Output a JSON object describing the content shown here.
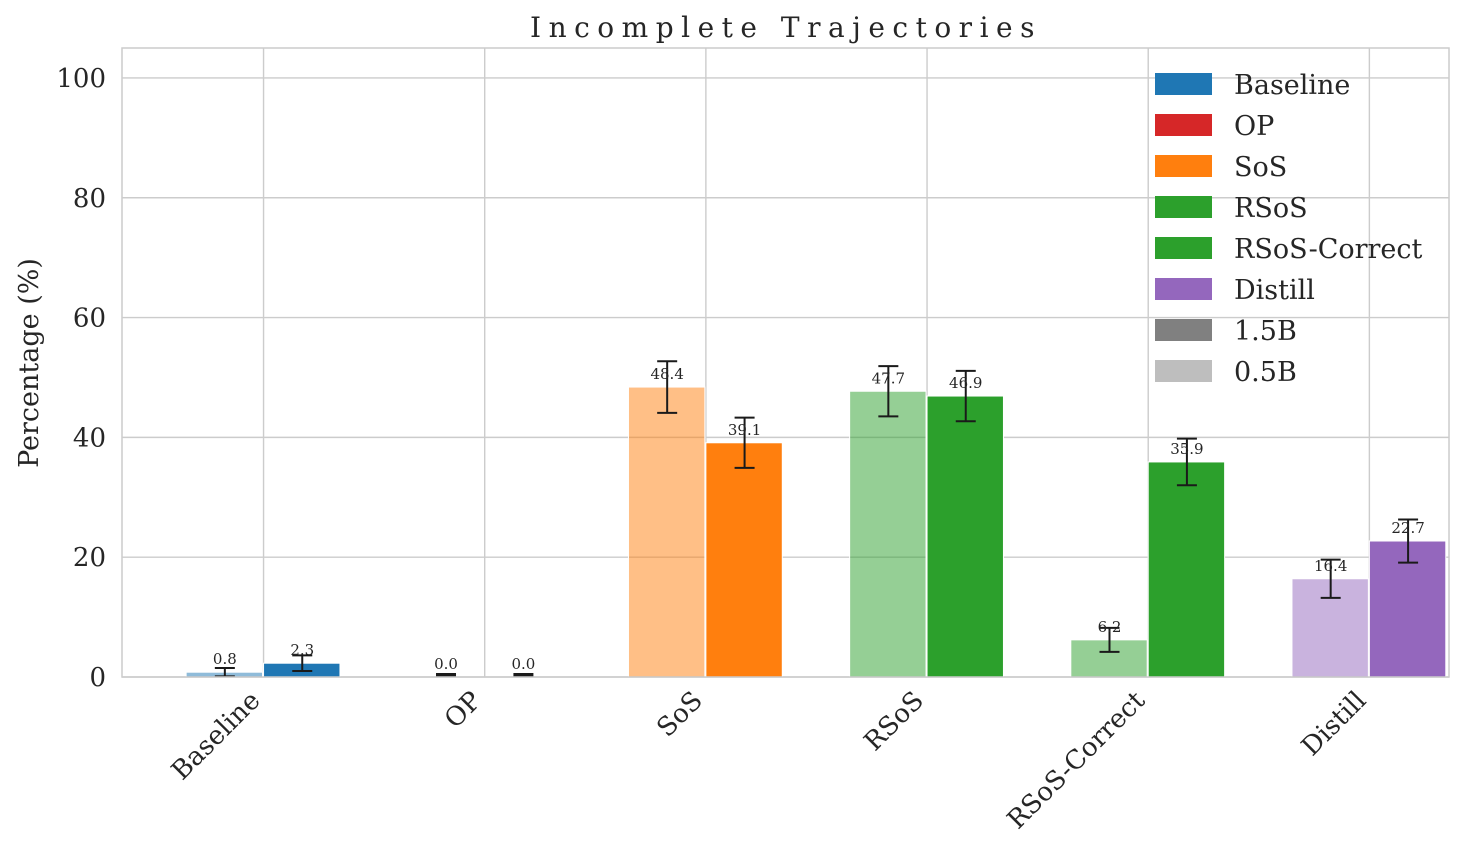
{
  "chart_data": {
    "type": "bar",
    "title": "Incomplete Trajectories",
    "xlabel": "",
    "ylabel": "Percentage (%)",
    "ylim": [
      0,
      105
    ],
    "yticks": [
      0,
      20,
      40,
      60,
      80,
      100
    ],
    "grid": true,
    "legend_position": "top-right",
    "categories": [
      "Baseline",
      "OP",
      "SoS",
      "RSoS",
      "RSoS-Correct",
      "Distill"
    ],
    "category_colors": [
      "#1f77b4",
      "#d62728",
      "#ff7f0e",
      "#2ca02c",
      "#2ca02c",
      "#9467bd"
    ],
    "series": [
      {
        "name": "0.5B",
        "alpha": 0.5,
        "values": [
          0.8,
          0.0,
          48.4,
          47.7,
          6.2,
          16.4
        ],
        "errors": [
          0.7,
          0.0,
          4.3,
          4.2,
          2.0,
          3.2
        ],
        "labels": [
          "0.8",
          "0.0",
          "48.4",
          "47.7",
          "6.2",
          "16.4"
        ]
      },
      {
        "name": "1.5B",
        "alpha": 1.0,
        "values": [
          2.3,
          0.0,
          39.1,
          46.9,
          35.9,
          22.7
        ],
        "errors": [
          1.3,
          0.0,
          4.2,
          4.2,
          3.9,
          3.6
        ],
        "labels": [
          "2.3",
          "0.0",
          "39.1",
          "46.9",
          "35.9",
          "22.7"
        ]
      }
    ],
    "legend": [
      {
        "label": "Baseline",
        "color": "#1f77b4"
      },
      {
        "label": "OP",
        "color": "#d62728"
      },
      {
        "label": "SoS",
        "color": "#ff7f0e"
      },
      {
        "label": "RSoS",
        "color": "#2ca02c"
      },
      {
        "label": "RSoS-Correct",
        "color": "#2ca02c"
      },
      {
        "label": "Distill",
        "color": "#9467bd"
      },
      {
        "label": "1.5B",
        "color": "#808080"
      },
      {
        "label": "0.5B",
        "color": "#bebebe"
      }
    ]
  }
}
